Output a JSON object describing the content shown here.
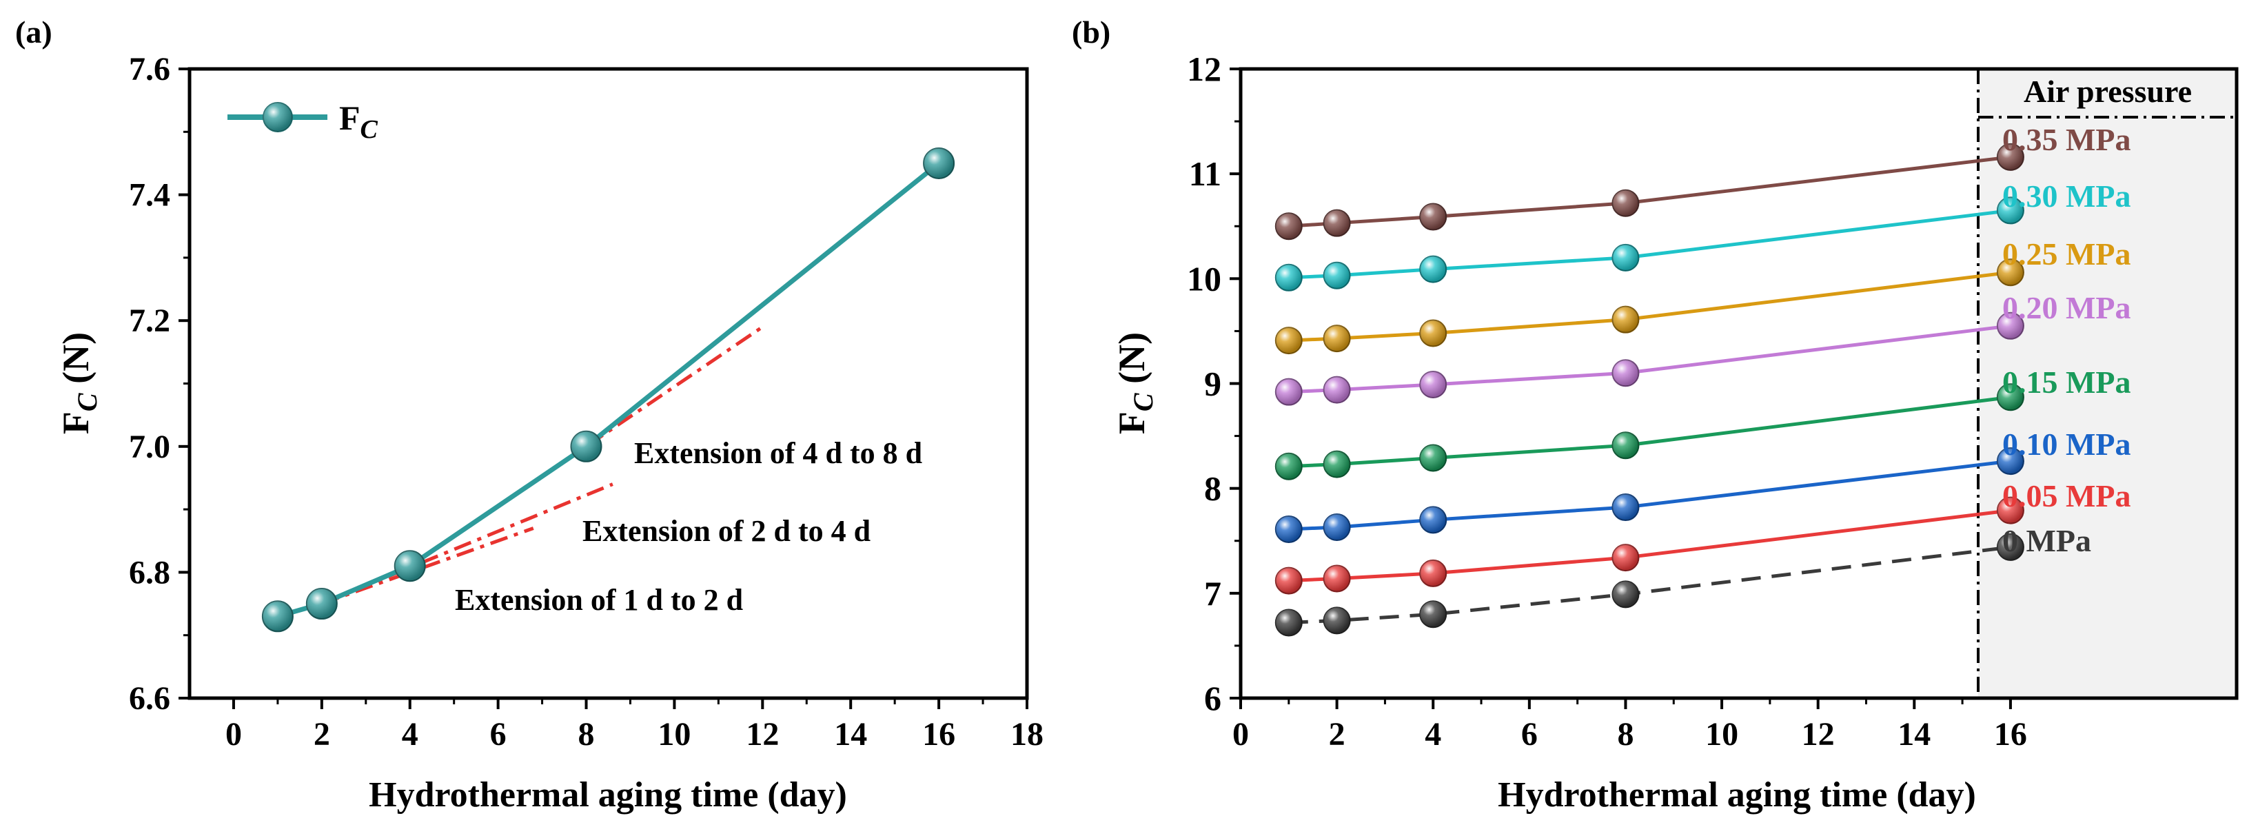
{
  "chart_data": [
    {
      "type": "line",
      "panel_label": "(a)",
      "xlabel": "Hydrothermal aging time (day)",
      "ylabel": "F",
      "ylabel_sub": "C",
      "ylabel_unit": " (N)",
      "xlim": [
        -1,
        18
      ],
      "ylim": [
        6.6,
        7.6
      ],
      "xticks": [
        "0",
        "2",
        "4",
        "6",
        "8",
        "10",
        "12",
        "14",
        "16",
        "18"
      ],
      "yticks": [
        "6.6",
        "6.8",
        "7.0",
        "7.2",
        "7.4",
        "7.6"
      ],
      "series": [
        {
          "name": "F",
          "name_sub": "C",
          "color": "#2e9b9b",
          "x": [
            1,
            2,
            4,
            8,
            16
          ],
          "y": [
            6.73,
            6.75,
            6.81,
            7.0,
            7.45
          ]
        }
      ],
      "extensions": [
        {
          "label": "Extension of 1 d to 2 d",
          "color": "#e8332f",
          "x": [
            2,
            6.8
          ],
          "y": [
            6.75,
            6.87
          ]
        },
        {
          "label": "Extension of 2 d to 4 d",
          "color": "#e8332f",
          "x": [
            2,
            8.6
          ],
          "y": [
            6.75,
            6.94
          ]
        },
        {
          "label": "Extension of 4 d to 8 d",
          "color": "#e8332f",
          "x": [
            4,
            12
          ],
          "y": [
            6.81,
            7.19
          ]
        }
      ],
      "legend": "top-left"
    },
    {
      "type": "line",
      "panel_label": "(b)",
      "xlabel": "Hydrothermal aging time (day)",
      "ylabel": "F",
      "ylabel_sub": "C",
      "ylabel_unit": " (N)",
      "xlim": [
        0,
        20.7
      ],
      "ylim": [
        6,
        12
      ],
      "xticks": [
        "0",
        "2",
        "4",
        "6",
        "8",
        "10",
        "12",
        "14",
        "16"
      ],
      "yticks": [
        "6",
        "7",
        "8",
        "9",
        "10",
        "11",
        "12"
      ],
      "legend_title": "Air pressure",
      "x": [
        1,
        2,
        4,
        8,
        16
      ],
      "series": [
        {
          "name": "0.35 MPa",
          "color": "#7f4a46",
          "values": [
            10.5,
            10.53,
            10.59,
            10.72,
            11.16
          ]
        },
        {
          "name": "0.30 MPa",
          "color": "#1ec3c9",
          "values": [
            10.01,
            10.03,
            10.09,
            10.2,
            10.65
          ]
        },
        {
          "name": "0.25 MPa",
          "color": "#d99a12",
          "values": [
            9.41,
            9.43,
            9.48,
            9.61,
            10.06
          ]
        },
        {
          "name": "0.20 MPa",
          "color": "#c27ad6",
          "values": [
            8.92,
            8.94,
            8.99,
            9.1,
            9.55
          ]
        },
        {
          "name": "0.15 MPa",
          "color": "#199a5a",
          "values": [
            8.21,
            8.23,
            8.29,
            8.41,
            8.87
          ]
        },
        {
          "name": "0.10 MPa",
          "color": "#1a64c8",
          "values": [
            7.61,
            7.63,
            7.7,
            7.82,
            8.26
          ]
        },
        {
          "name": "0.05 MPa",
          "color": "#e83a3a",
          "values": [
            7.12,
            7.14,
            7.19,
            7.34,
            7.79
          ]
        },
        {
          "name": "0 MPa",
          "color": "#3a3a3a",
          "values": [
            6.72,
            6.74,
            6.8,
            6.99,
            7.44
          ],
          "dashed": true
        }
      ]
    }
  ]
}
